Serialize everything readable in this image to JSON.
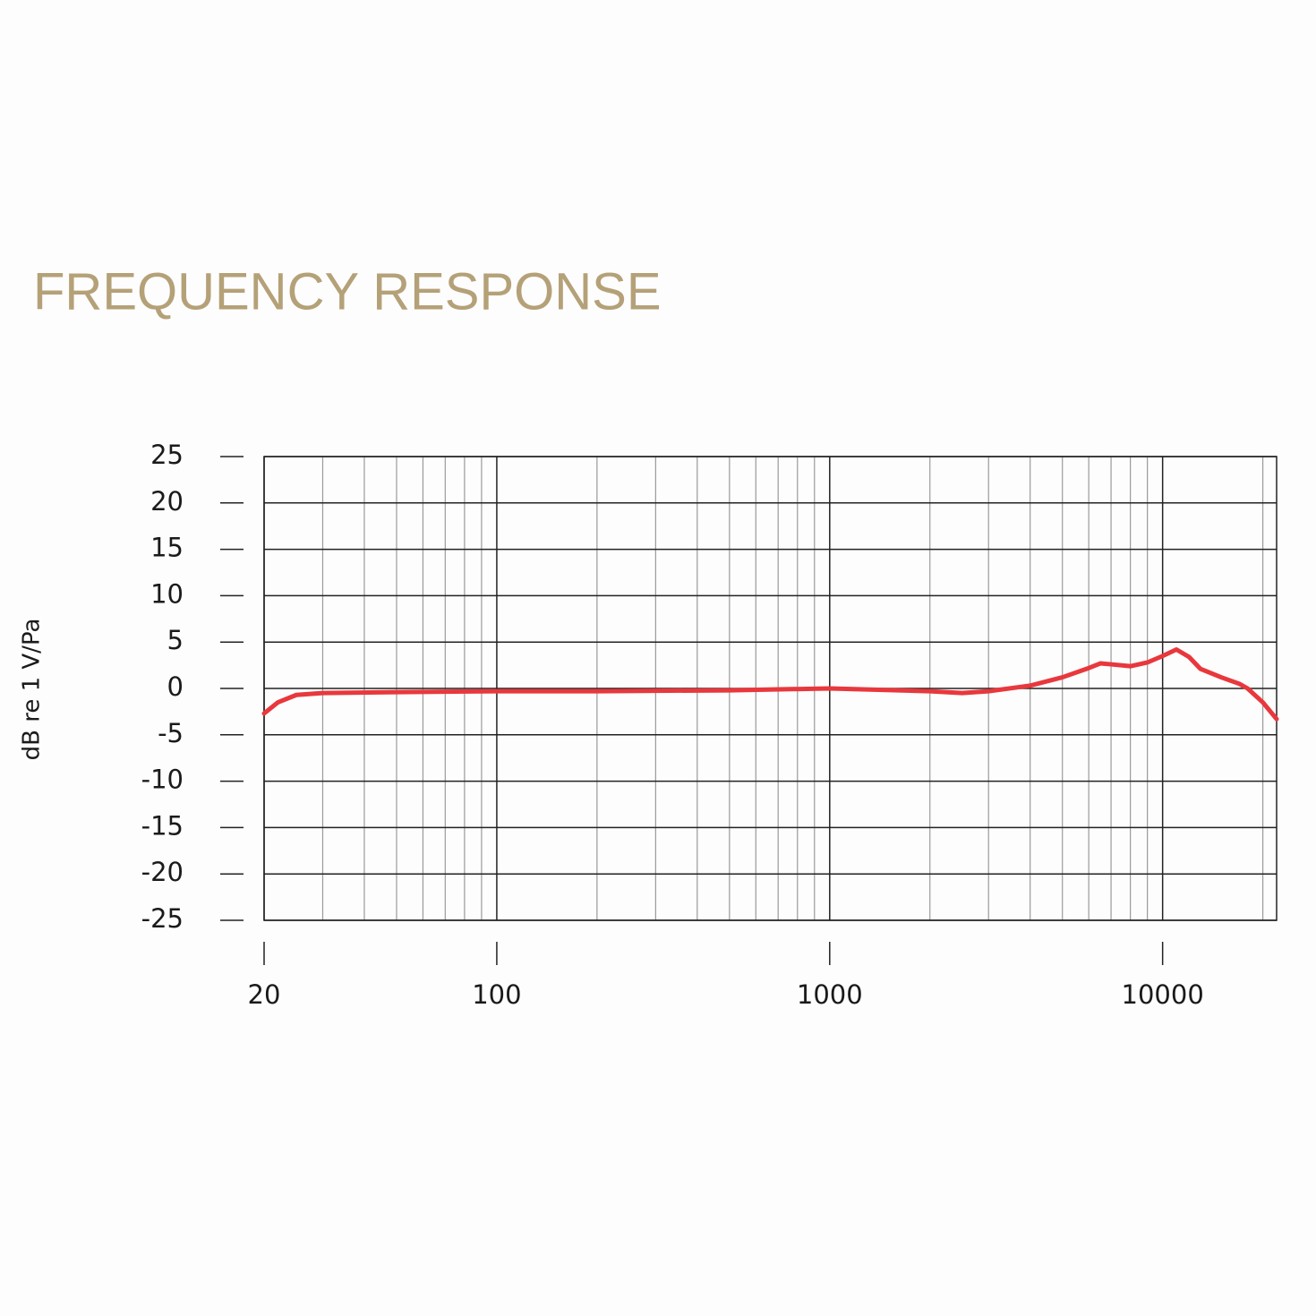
{
  "chart_data": {
    "type": "line",
    "title": "FREQUENCY RESPONSE",
    "y_label": "dB re 1 V/Pa",
    "log_x": true,
    "grid": true,
    "xlim": [
      20,
      22000
    ],
    "xticks": [
      20,
      100,
      1000,
      10000
    ],
    "xminorticks": [
      30,
      40,
      50,
      60,
      70,
      80,
      90,
      200,
      300,
      400,
      500,
      600,
      700,
      800,
      900,
      2000,
      3000,
      4000,
      5000,
      6000,
      7000,
      8000,
      9000,
      20000
    ],
    "ylim": [
      -25,
      25
    ],
    "yticks": [
      25,
      20,
      15,
      10,
      5,
      0,
      -5,
      -10,
      -15,
      -20,
      -25
    ],
    "x": [
      20,
      22,
      25,
      30,
      50,
      100,
      200,
      500,
      1000,
      2000,
      2500,
      3000,
      4000,
      5000,
      6000,
      6500,
      7000,
      8000,
      9000,
      10000,
      11000,
      12000,
      13000,
      15000,
      17000,
      18000,
      20000,
      22000
    ],
    "series": [
      {
        "color": "#e8383d",
        "values": [
          -2.7,
          -1.5,
          -0.7,
          -0.5,
          -0.4,
          -0.3,
          -0.3,
          -0.2,
          0,
          -0.3,
          -0.5,
          -0.3,
          0.3,
          1.2,
          2.2,
          2.7,
          2.6,
          2.4,
          2.8,
          3.5,
          4.2,
          3.4,
          2.1,
          1.2,
          0.5,
          0,
          -1.5,
          -3.3
        ]
      }
    ]
  }
}
